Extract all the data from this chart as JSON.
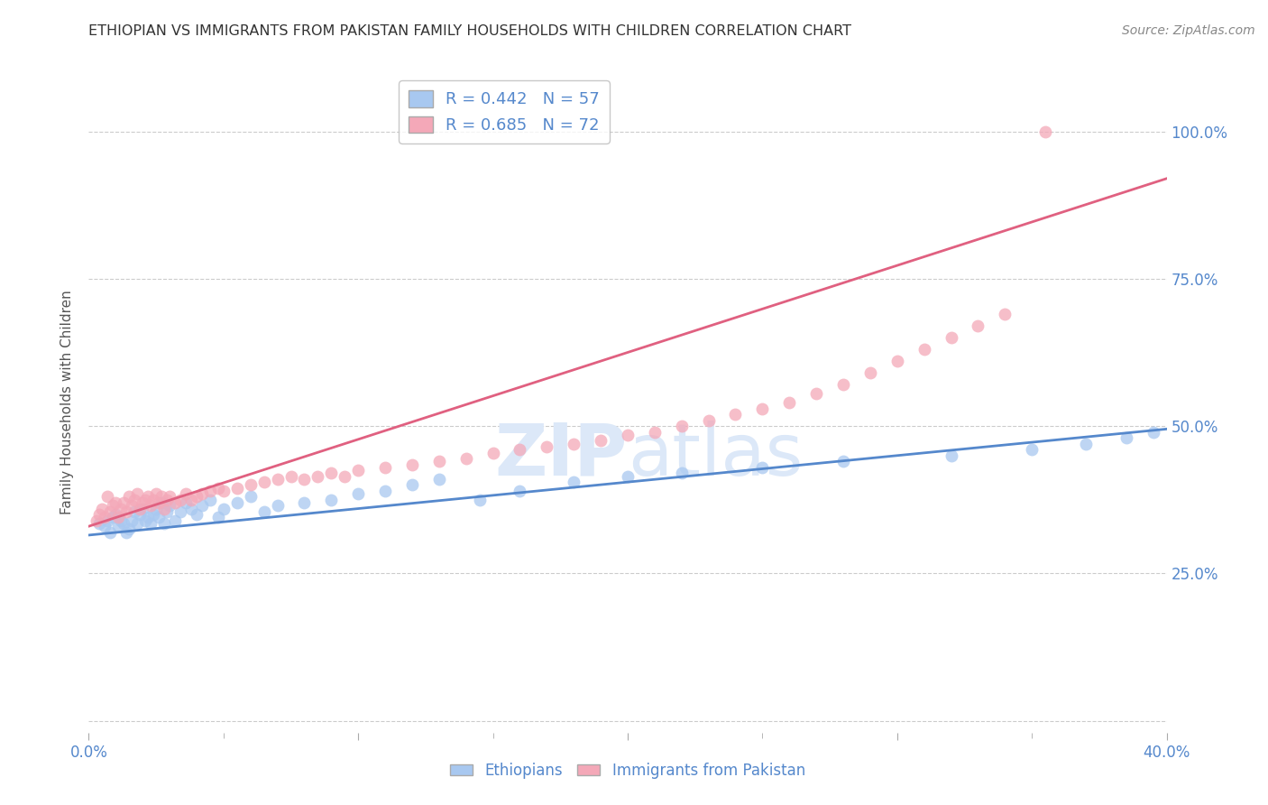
{
  "title": "ETHIOPIAN VS IMMIGRANTS FROM PAKISTAN FAMILY HOUSEHOLDS WITH CHILDREN CORRELATION CHART",
  "source": "Source: ZipAtlas.com",
  "ylabel": "Family Households with Children",
  "blue_R": 0.442,
  "blue_N": 57,
  "pink_R": 0.685,
  "pink_N": 72,
  "blue_color": "#A8C8F0",
  "pink_color": "#F4A8B8",
  "blue_line_color": "#5588CC",
  "pink_line_color": "#E06080",
  "tick_color": "#5588CC",
  "grid_color": "#CCCCCC",
  "background_color": "#FFFFFF",
  "title_color": "#333333",
  "watermark_color": "#DCE8F8",
  "xlim": [
    0.0,
    0.4
  ],
  "ylim": [
    -0.02,
    1.1
  ],
  "yticks": [
    0.0,
    0.25,
    0.5,
    0.75,
    1.0
  ],
  "ytick_labels": [
    "",
    "25.0%",
    "50.0%",
    "75.0%",
    "100.0%"
  ],
  "blue_line_x0": 0.0,
  "blue_line_y0": 0.315,
  "blue_line_x1": 0.4,
  "blue_line_y1": 0.495,
  "pink_line_x0": 0.0,
  "pink_line_y0": 0.33,
  "pink_line_x1": 0.4,
  "pink_line_y1": 0.92,
  "blue_x": [
    0.004,
    0.006,
    0.007,
    0.008,
    0.009,
    0.01,
    0.011,
    0.012,
    0.013,
    0.014,
    0.015,
    0.016,
    0.017,
    0.018,
    0.019,
    0.02,
    0.021,
    0.022,
    0.023,
    0.024,
    0.025,
    0.026,
    0.027,
    0.028,
    0.029,
    0.03,
    0.032,
    0.034,
    0.036,
    0.038,
    0.04,
    0.042,
    0.045,
    0.048,
    0.05,
    0.055,
    0.06,
    0.065,
    0.07,
    0.08,
    0.09,
    0.1,
    0.11,
    0.12,
    0.13,
    0.145,
    0.16,
    0.18,
    0.2,
    0.22,
    0.25,
    0.28,
    0.32,
    0.35,
    0.37,
    0.385,
    0.395
  ],
  "blue_y": [
    0.335,
    0.33,
    0.34,
    0.32,
    0.345,
    0.35,
    0.33,
    0.34,
    0.335,
    0.32,
    0.325,
    0.34,
    0.355,
    0.335,
    0.35,
    0.36,
    0.34,
    0.345,
    0.335,
    0.35,
    0.36,
    0.345,
    0.37,
    0.335,
    0.355,
    0.365,
    0.34,
    0.355,
    0.37,
    0.36,
    0.35,
    0.365,
    0.375,
    0.345,
    0.36,
    0.37,
    0.38,
    0.355,
    0.365,
    0.37,
    0.375,
    0.385,
    0.39,
    0.4,
    0.41,
    0.375,
    0.39,
    0.405,
    0.415,
    0.42,
    0.43,
    0.44,
    0.45,
    0.46,
    0.47,
    0.48,
    0.49
  ],
  "pink_x": [
    0.003,
    0.004,
    0.005,
    0.006,
    0.007,
    0.008,
    0.009,
    0.01,
    0.011,
    0.012,
    0.013,
    0.014,
    0.015,
    0.016,
    0.017,
    0.018,
    0.019,
    0.02,
    0.021,
    0.022,
    0.023,
    0.024,
    0.025,
    0.026,
    0.027,
    0.028,
    0.029,
    0.03,
    0.032,
    0.034,
    0.036,
    0.038,
    0.04,
    0.042,
    0.045,
    0.048,
    0.05,
    0.055,
    0.06,
    0.065,
    0.07,
    0.075,
    0.08,
    0.085,
    0.09,
    0.095,
    0.1,
    0.11,
    0.12,
    0.13,
    0.14,
    0.15,
    0.16,
    0.17,
    0.18,
    0.19,
    0.2,
    0.21,
    0.22,
    0.23,
    0.24,
    0.25,
    0.26,
    0.27,
    0.28,
    0.29,
    0.3,
    0.31,
    0.32,
    0.33,
    0.34,
    0.355
  ],
  "pink_y": [
    0.34,
    0.35,
    0.36,
    0.345,
    0.38,
    0.355,
    0.365,
    0.37,
    0.345,
    0.36,
    0.37,
    0.355,
    0.38,
    0.365,
    0.375,
    0.385,
    0.36,
    0.37,
    0.375,
    0.38,
    0.365,
    0.375,
    0.385,
    0.37,
    0.38,
    0.36,
    0.375,
    0.38,
    0.37,
    0.375,
    0.385,
    0.375,
    0.38,
    0.385,
    0.39,
    0.395,
    0.39,
    0.395,
    0.4,
    0.405,
    0.41,
    0.415,
    0.41,
    0.415,
    0.42,
    0.415,
    0.425,
    0.43,
    0.435,
    0.44,
    0.445,
    0.455,
    0.46,
    0.465,
    0.47,
    0.475,
    0.485,
    0.49,
    0.5,
    0.51,
    0.52,
    0.53,
    0.54,
    0.555,
    0.57,
    0.59,
    0.61,
    0.63,
    0.65,
    0.67,
    0.69,
    1.0
  ]
}
